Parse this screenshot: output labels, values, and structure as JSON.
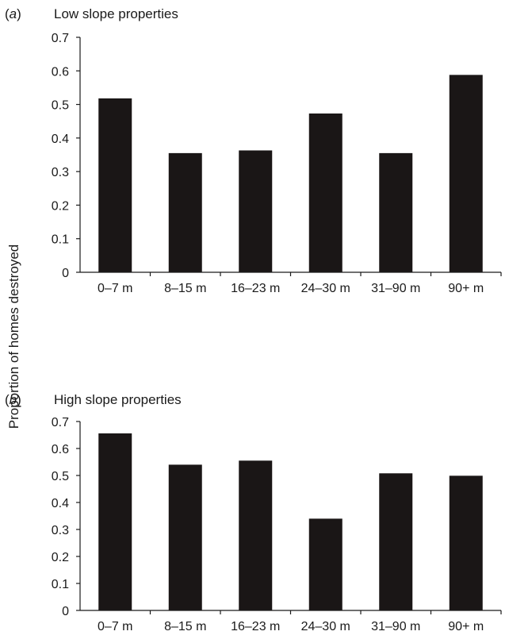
{
  "ylabel": "Proportion of homes destroyed",
  "colors": {
    "bar": "#1a1616",
    "axis": "#1a1a1a"
  },
  "chart_data": [
    {
      "type": "bar",
      "panel": "(a)",
      "panel_letter": "a",
      "title": "Low slope properties",
      "categories": [
        "0–7 m",
        "8–15 m",
        "16–23 m",
        "24–30 m",
        "31–90 m",
        "90+ m"
      ],
      "values": [
        0.518,
        0.355,
        0.363,
        0.473,
        0.355,
        0.588
      ],
      "ylim": [
        0,
        0.7
      ],
      "yticks": [
        "0",
        "0.1",
        "0.2",
        "0.3",
        "0.4",
        "0.5",
        "0.6",
        "0.7"
      ],
      "grid": false,
      "xlabel": "",
      "ylabel": "Proportion of homes destroyed"
    },
    {
      "type": "bar",
      "panel": "(b)",
      "panel_letter": "b",
      "title": "High slope properties",
      "categories": [
        "0–7 m",
        "8–15 m",
        "16–23 m",
        "24–30 m",
        "31–90 m",
        "90+ m"
      ],
      "values": [
        0.656,
        0.54,
        0.555,
        0.34,
        0.508,
        0.499
      ],
      "ylim": [
        0,
        0.7
      ],
      "yticks": [
        "0",
        "0.1",
        "0.2",
        "0.3",
        "0.4",
        "0.5",
        "0.6",
        "0.7"
      ],
      "grid": false,
      "xlabel": "",
      "ylabel": "Proportion of homes destroyed"
    }
  ]
}
